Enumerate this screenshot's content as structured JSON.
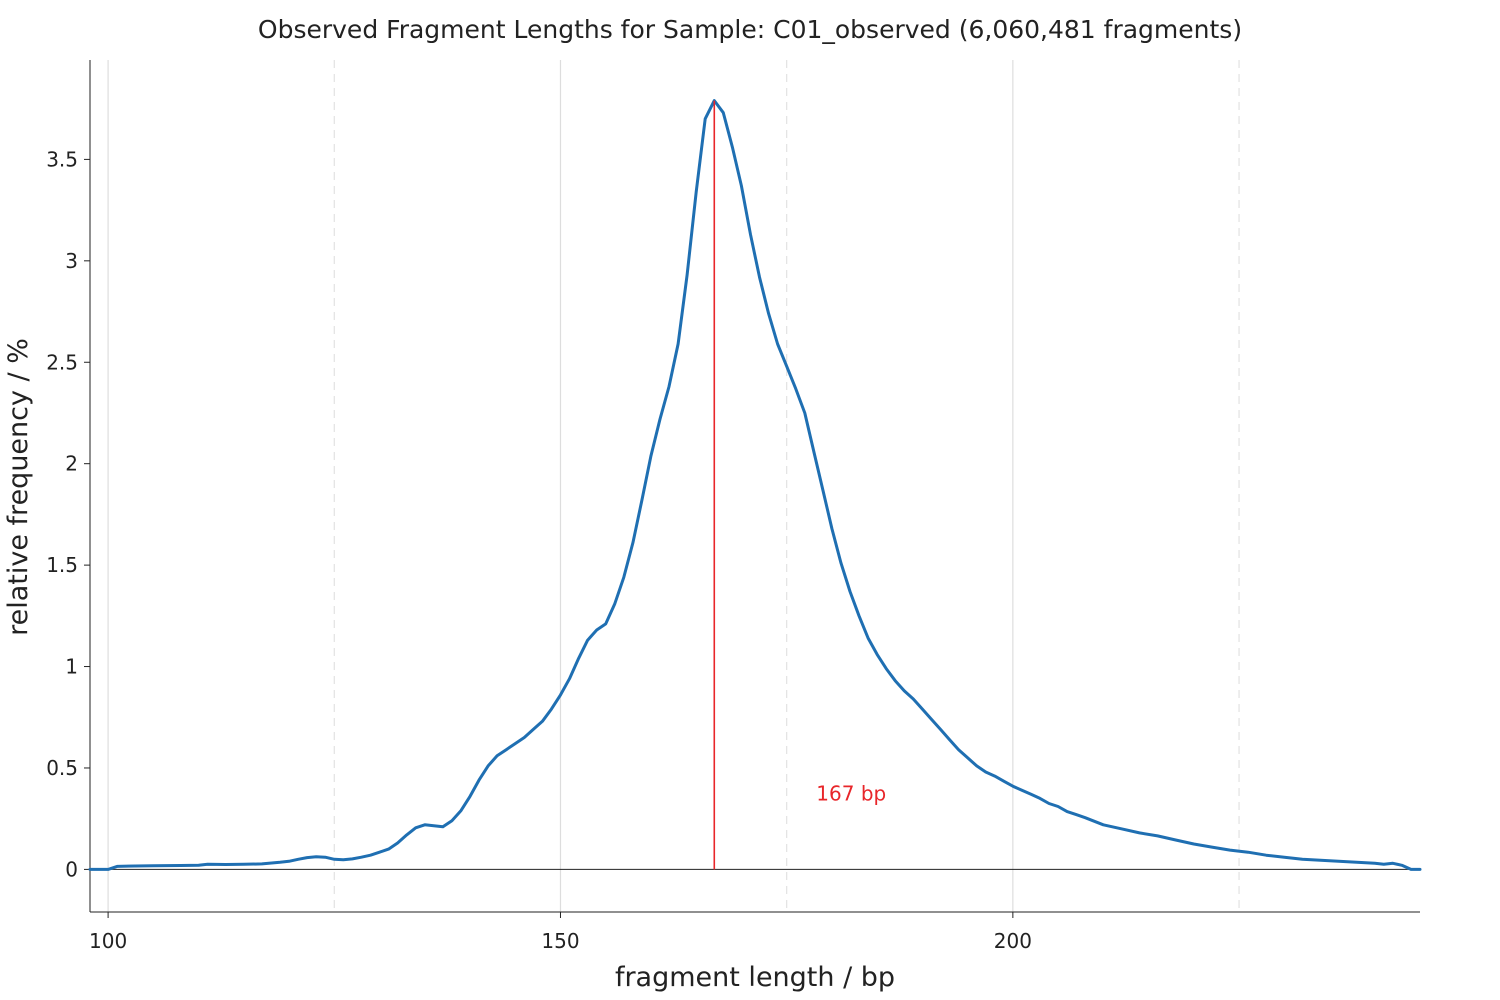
{
  "colors": {
    "series": "#1f6fb2",
    "marker": "#e8262a",
    "grid_solid": "#dddddd",
    "grid_dashed": "#e2e2e2",
    "axis": "#222222",
    "zero_line": "#222222"
  },
  "chart_data": {
    "type": "line",
    "title": "Observed Fragment Lengths for Sample: C01_observed (6,060,481 fragments)",
    "xlabel": "fragment length / bp",
    "ylabel": "relative frequency / %",
    "xlim": [
      98,
      245
    ],
    "ylim": [
      -0.21,
      3.99
    ],
    "x_ticks": [
      100,
      150,
      200
    ],
    "x_tick_labels": [
      "100",
      "150",
      "200"
    ],
    "x_minor_dashed": [
      125,
      175,
      225
    ],
    "y_ticks": [
      0,
      0.5,
      1,
      1.5,
      2,
      2.5,
      3,
      3.5
    ],
    "y_tick_labels": [
      "0",
      "0.5",
      "1",
      "1.5",
      "2",
      "2.5",
      "3",
      "3.5"
    ],
    "grid": "vertical",
    "legend": "none",
    "marker_line": {
      "x": 167,
      "label": "167 bp"
    },
    "series": [
      {
        "x": [
          98,
          100,
          101,
          103,
          105,
          108,
          110,
          111,
          113,
          115,
          117,
          119,
          120,
          121,
          122,
          123,
          124,
          125,
          126,
          127,
          128,
          129,
          130,
          131,
          132,
          133,
          134,
          135,
          136,
          137,
          138,
          139,
          140,
          141,
          142,
          143,
          144,
          145,
          146,
          147,
          148,
          149,
          150,
          151,
          152,
          153,
          154,
          155,
          156,
          157,
          158,
          159,
          160,
          161,
          162,
          163,
          164,
          165,
          166,
          167,
          168,
          169,
          170,
          171,
          172,
          173,
          174,
          175,
          176,
          177,
          178,
          179,
          180,
          181,
          182,
          183,
          184,
          185,
          186,
          187,
          188,
          189,
          190,
          191,
          192,
          193,
          194,
          195,
          196,
          197,
          198,
          199,
          200,
          201,
          202,
          203,
          204,
          205,
          206,
          207,
          208,
          210,
          212,
          214,
          216,
          218,
          220,
          222,
          224,
          226,
          228,
          230,
          232,
          234,
          236,
          238,
          240,
          241,
          242,
          243,
          244,
          245
        ],
        "y": [
          0,
          0,
          0.015,
          0.017,
          0.018,
          0.019,
          0.02,
          0.025,
          0.024,
          0.025,
          0.027,
          0.035,
          0.04,
          0.05,
          0.058,
          0.062,
          0.06,
          0.05,
          0.048,
          0.052,
          0.06,
          0.07,
          0.085,
          0.1,
          0.13,
          0.17,
          0.205,
          0.22,
          0.215,
          0.21,
          0.24,
          0.29,
          0.36,
          0.44,
          0.51,
          0.56,
          0.59,
          0.62,
          0.65,
          0.69,
          0.73,
          0.79,
          0.86,
          0.94,
          1.04,
          1.13,
          1.18,
          1.21,
          1.31,
          1.44,
          1.61,
          1.82,
          2.04,
          2.22,
          2.38,
          2.59,
          2.93,
          3.34,
          3.7,
          3.79,
          3.73,
          3.56,
          3.37,
          3.13,
          2.92,
          2.74,
          2.59,
          2.48,
          2.37,
          2.25,
          2.06,
          1.87,
          1.68,
          1.51,
          1.37,
          1.25,
          1.14,
          1.06,
          0.99,
          0.93,
          0.88,
          0.84,
          0.79,
          0.74,
          0.69,
          0.64,
          0.59,
          0.55,
          0.51,
          0.48,
          0.46,
          0.435,
          0.41,
          0.39,
          0.37,
          0.35,
          0.325,
          0.31,
          0.285,
          0.27,
          0.255,
          0.22,
          0.2,
          0.18,
          0.165,
          0.145,
          0.125,
          0.11,
          0.095,
          0.085,
          0.07,
          0.06,
          0.05,
          0.045,
          0.04,
          0.035,
          0.03,
          0.025,
          0.03,
          0.02,
          0,
          0
        ]
      }
    ]
  }
}
